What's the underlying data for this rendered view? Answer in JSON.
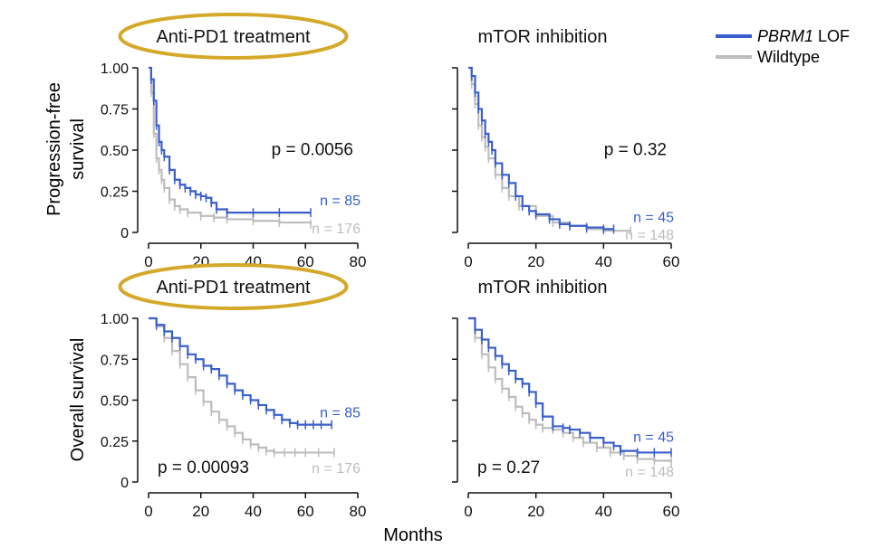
{
  "colors": {
    "lof": "#3a5fcd",
    "wildtype": "#bdbdbd",
    "highlight": "#d4a92a",
    "axis": "#111111"
  },
  "legend": {
    "lof_italic": "PBRM1",
    "lof_suffix": " LOF",
    "wildtype": "Wildtype"
  },
  "row_labels": {
    "pfs_line1": "Progression-free",
    "pfs_line2": "survival",
    "os": "Overall survival"
  },
  "xlabel": "Months",
  "chart_data": [
    {
      "type": "line",
      "title": "Anti-PD1 treatment",
      "highlighted": true,
      "ylim": [
        0,
        1
      ],
      "xlim": [
        0,
        80
      ],
      "yticks": [
        0,
        0.25,
        0.5,
        0.75,
        1
      ],
      "ytick_labels": [
        "0",
        "0.25",
        "0.50",
        "0.75",
        "1.00"
      ],
      "xticks": [
        0,
        20,
        40,
        60,
        80
      ],
      "xtick_labels": [
        "0",
        "20",
        "40",
        "60",
        "80"
      ],
      "pvalue": "p = 0.0056",
      "pvalue_pos": "center-right",
      "series": [
        {
          "key": "lof",
          "n_label": "n = 85",
          "x": [
            0,
            1,
            2,
            3,
            4,
            5,
            6,
            8,
            10,
            12,
            14,
            16,
            18,
            20,
            22,
            24,
            26,
            30,
            40,
            50,
            62
          ],
          "y": [
            1.0,
            0.93,
            0.8,
            0.65,
            0.55,
            0.5,
            0.46,
            0.38,
            0.32,
            0.29,
            0.27,
            0.25,
            0.23,
            0.22,
            0.21,
            0.18,
            0.14,
            0.12,
            0.12,
            0.12,
            0.12
          ]
        },
        {
          "key": "wildtype",
          "n_label": "n = 176",
          "x": [
            0,
            1,
            2,
            3,
            4,
            5,
            6,
            8,
            10,
            12,
            15,
            20,
            25,
            30,
            40,
            50,
            62
          ],
          "y": [
            1.0,
            0.85,
            0.6,
            0.45,
            0.38,
            0.32,
            0.27,
            0.2,
            0.16,
            0.14,
            0.12,
            0.1,
            0.09,
            0.08,
            0.07,
            0.06,
            0.05
          ]
        }
      ]
    },
    {
      "type": "line",
      "title": "mTOR inhibition",
      "highlighted": false,
      "ylim": [
        0,
        1
      ],
      "xlim": [
        0,
        60
      ],
      "yticks": [
        0,
        0.25,
        0.5,
        0.75,
        1
      ],
      "xticks": [
        0,
        20,
        40,
        60
      ],
      "xtick_labels": [
        "0",
        "20",
        "40",
        "60"
      ],
      "pvalue": "p = 0.32",
      "pvalue_pos": "center-right",
      "series": [
        {
          "key": "lof",
          "n_label": "n = 45",
          "x": [
            0,
            1,
            2,
            3,
            4,
            5,
            6,
            7,
            8,
            10,
            12,
            14,
            16,
            18,
            20,
            24,
            27,
            30,
            35,
            40,
            43
          ],
          "y": [
            1.0,
            0.95,
            0.85,
            0.75,
            0.68,
            0.6,
            0.55,
            0.5,
            0.42,
            0.35,
            0.3,
            0.22,
            0.16,
            0.13,
            0.11,
            0.08,
            0.05,
            0.04,
            0.03,
            0.02,
            0.02
          ]
        },
        {
          "key": "wildtype",
          "n_label": "n = 148",
          "x": [
            0,
            1,
            2,
            3,
            4,
            5,
            6,
            8,
            10,
            12,
            15,
            20,
            25,
            30,
            35,
            40,
            48
          ],
          "y": [
            1.0,
            0.9,
            0.78,
            0.65,
            0.58,
            0.52,
            0.45,
            0.35,
            0.27,
            0.22,
            0.16,
            0.1,
            0.06,
            0.04,
            0.02,
            0.01,
            0.01
          ]
        }
      ]
    },
    {
      "type": "line",
      "title": "Anti-PD1 treatment",
      "highlighted": true,
      "ylim": [
        0,
        1
      ],
      "xlim": [
        0,
        80
      ],
      "yticks": [
        0,
        0.25,
        0.5,
        0.75,
        1
      ],
      "ytick_labels": [
        "0",
        "0.25",
        "0.50",
        "0.75",
        "1.00"
      ],
      "xticks": [
        0,
        20,
        40,
        60,
        80
      ],
      "xtick_labels": [
        "0",
        "20",
        "40",
        "60",
        "80"
      ],
      "pvalue": "p = 0.00093",
      "pvalue_pos": "bottom-left",
      "series": [
        {
          "key": "lof",
          "n_label": "n = 85",
          "x": [
            0,
            3,
            6,
            9,
            12,
            15,
            18,
            21,
            24,
            27,
            30,
            33,
            36,
            39,
            42,
            45,
            48,
            51,
            54,
            57,
            60,
            63,
            66,
            70
          ],
          "y": [
            1.0,
            0.96,
            0.92,
            0.88,
            0.83,
            0.78,
            0.75,
            0.71,
            0.69,
            0.65,
            0.6,
            0.56,
            0.53,
            0.5,
            0.47,
            0.44,
            0.41,
            0.38,
            0.36,
            0.35,
            0.35,
            0.35,
            0.35,
            0.35
          ]
        },
        {
          "key": "wildtype",
          "n_label": "n = 176",
          "x": [
            0,
            3,
            6,
            9,
            12,
            15,
            18,
            21,
            24,
            27,
            30,
            33,
            36,
            39,
            42,
            45,
            48,
            52,
            56,
            60,
            65,
            71
          ],
          "y": [
            1.0,
            0.95,
            0.88,
            0.8,
            0.72,
            0.64,
            0.56,
            0.49,
            0.43,
            0.38,
            0.34,
            0.3,
            0.26,
            0.23,
            0.21,
            0.19,
            0.18,
            0.18,
            0.18,
            0.18,
            0.18,
            0.18
          ]
        }
      ]
    },
    {
      "type": "line",
      "title": "mTOR inhibition",
      "highlighted": false,
      "ylim": [
        0,
        1
      ],
      "xlim": [
        0,
        60
      ],
      "yticks": [
        0,
        0.25,
        0.5,
        0.75,
        1
      ],
      "xticks": [
        0,
        20,
        40,
        60
      ],
      "xtick_labels": [
        "0",
        "20",
        "40",
        "60"
      ],
      "pvalue": "p = 0.27",
      "pvalue_pos": "bottom-left",
      "series": [
        {
          "key": "lof",
          "n_label": "n = 45",
          "x": [
            0,
            2,
            4,
            6,
            8,
            10,
            12,
            14,
            16,
            18,
            20,
            22,
            25,
            28,
            30,
            33,
            36,
            40,
            43,
            45,
            50,
            55,
            60
          ],
          "y": [
            1.0,
            0.93,
            0.87,
            0.82,
            0.77,
            0.72,
            0.68,
            0.63,
            0.6,
            0.55,
            0.48,
            0.4,
            0.34,
            0.33,
            0.32,
            0.3,
            0.27,
            0.24,
            0.22,
            0.19,
            0.18,
            0.18,
            0.18
          ]
        },
        {
          "key": "wildtype",
          "n_label": "n = 148",
          "x": [
            0,
            2,
            4,
            6,
            8,
            10,
            12,
            14,
            16,
            18,
            20,
            22,
            25,
            28,
            31,
            34,
            38,
            42,
            46,
            50,
            55,
            60
          ],
          "y": [
            1.0,
            0.88,
            0.78,
            0.7,
            0.63,
            0.57,
            0.52,
            0.46,
            0.42,
            0.38,
            0.35,
            0.33,
            0.32,
            0.3,
            0.27,
            0.24,
            0.21,
            0.18,
            0.16,
            0.14,
            0.13,
            0.12
          ]
        }
      ]
    }
  ]
}
